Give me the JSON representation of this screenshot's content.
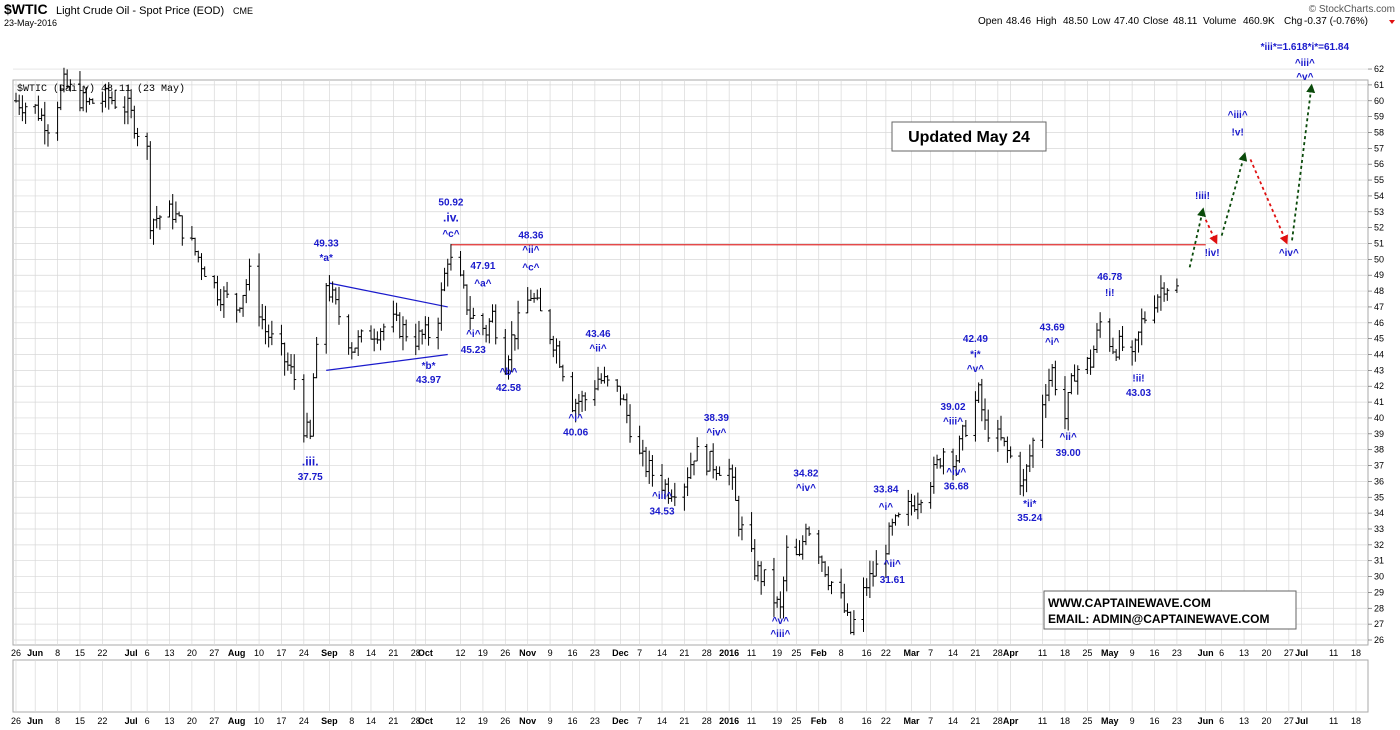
{
  "header": {
    "symbol": "$WTIC",
    "description": "Light Crude Oil - Spot Price (EOD)",
    "exchange": "CME",
    "date": "23-May-2016",
    "brand": "© StockCharts.com",
    "quote": {
      "open_label": "Open",
      "open": "48.46",
      "high_label": "High",
      "high": "48.50",
      "low_label": "Low",
      "low": "47.40",
      "close_label": "Close",
      "close": "48.11",
      "volume_label": "Volume",
      "volume": "460.9K",
      "chg_label": "Chg",
      "chg": "-0.37 (-0.76%)"
    }
  },
  "legend": "$WTIC (Daily) 48.11 (23 May)",
  "update_box": "Updated May 24",
  "contact": {
    "line1": "WWW.CAPTAINEWAVE.COM",
    "line2": "EMAIL: ADMIN@CAPTAINEWAVE.COM"
  },
  "colors": {
    "price_bars": "#000000",
    "annotation": "#1a1acc",
    "resistance": "#e03030",
    "up_arrow": "#0a4a0a",
    "down_arrow": "#e01010",
    "grid": "#d8d8d8"
  },
  "chart_data": {
    "type": "ohlc",
    "title": "$WTIC Light Crude Oil - Spot Price (EOD)",
    "ylim": [
      26,
      62
    ],
    "y_ticks": [
      26,
      27,
      28,
      29,
      30,
      31,
      32,
      33,
      34,
      35,
      36,
      37,
      38,
      39,
      40,
      41,
      42,
      43,
      44,
      45,
      46,
      47,
      48,
      49,
      50,
      51,
      52,
      53,
      54,
      55,
      56,
      57,
      58,
      59,
      60,
      61,
      62
    ],
    "x_range": [
      "2015-05-26",
      "2016-07-18"
    ],
    "x_ticks": [
      {
        "label": "26",
        "date": "2015-05-26"
      },
      {
        "label": "Jun",
        "date": "2015-06-01"
      },
      {
        "label": "8",
        "date": "2015-06-08"
      },
      {
        "label": "15",
        "date": "2015-06-15"
      },
      {
        "label": "22",
        "date": "2015-06-22"
      },
      {
        "label": "Jul",
        "date": "2015-07-01"
      },
      {
        "label": "6",
        "date": "2015-07-06"
      },
      {
        "label": "13",
        "date": "2015-07-13"
      },
      {
        "label": "20",
        "date": "2015-07-20"
      },
      {
        "label": "27",
        "date": "2015-07-27"
      },
      {
        "label": "Aug",
        "date": "2015-08-03"
      },
      {
        "label": "10",
        "date": "2015-08-10"
      },
      {
        "label": "17",
        "date": "2015-08-17"
      },
      {
        "label": "24",
        "date": "2015-08-24"
      },
      {
        "label": "Sep",
        "date": "2015-09-01"
      },
      {
        "label": "8",
        "date": "2015-09-08"
      },
      {
        "label": "14",
        "date": "2015-09-14"
      },
      {
        "label": "21",
        "date": "2015-09-21"
      },
      {
        "label": "28",
        "date": "2015-09-28"
      },
      {
        "label": "Oct",
        "date": "2015-10-01"
      },
      {
        "label": "12",
        "date": "2015-10-12"
      },
      {
        "label": "19",
        "date": "2015-10-19"
      },
      {
        "label": "26",
        "date": "2015-10-26"
      },
      {
        "label": "Nov",
        "date": "2015-11-02"
      },
      {
        "label": "9",
        "date": "2015-11-09"
      },
      {
        "label": "16",
        "date": "2015-11-16"
      },
      {
        "label": "23",
        "date": "2015-11-23"
      },
      {
        "label": "Dec",
        "date": "2015-12-01"
      },
      {
        "label": "7",
        "date": "2015-12-07"
      },
      {
        "label": "14",
        "date": "2015-12-14"
      },
      {
        "label": "21",
        "date": "2015-12-21"
      },
      {
        "label": "28",
        "date": "2015-12-28"
      },
      {
        "label": "2016",
        "date": "2016-01-04"
      },
      {
        "label": "11",
        "date": "2016-01-11"
      },
      {
        "label": "19",
        "date": "2016-01-19"
      },
      {
        "label": "25",
        "date": "2016-01-25"
      },
      {
        "label": "Feb",
        "date": "2016-02-01"
      },
      {
        "label": "8",
        "date": "2016-02-08"
      },
      {
        "label": "16",
        "date": "2016-02-16"
      },
      {
        "label": "22",
        "date": "2016-02-22"
      },
      {
        "label": "Mar",
        "date": "2016-03-01"
      },
      {
        "label": "7",
        "date": "2016-03-07"
      },
      {
        "label": "14",
        "date": "2016-03-14"
      },
      {
        "label": "21",
        "date": "2016-03-21"
      },
      {
        "label": "28",
        "date": "2016-03-28"
      },
      {
        "label": "Apr",
        "date": "2016-04-01"
      },
      {
        "label": "11",
        "date": "2016-04-11"
      },
      {
        "label": "18",
        "date": "2016-04-18"
      },
      {
        "label": "25",
        "date": "2016-04-25"
      },
      {
        "label": "May",
        "date": "2016-05-02"
      },
      {
        "label": "9",
        "date": "2016-05-09"
      },
      {
        "label": "16",
        "date": "2016-05-16"
      },
      {
        "label": "23",
        "date": "2016-05-23"
      },
      {
        "label": "Jun",
        "date": "2016-06-01"
      },
      {
        "label": "6",
        "date": "2016-06-06"
      },
      {
        "label": "13",
        "date": "2016-06-13"
      },
      {
        "label": "20",
        "date": "2016-06-20"
      },
      {
        "label": "27",
        "date": "2016-06-27"
      },
      {
        "label": "Jul",
        "date": "2016-07-01"
      },
      {
        "label": "11",
        "date": "2016-07-11"
      },
      {
        "label": "18",
        "date": "2016-07-18"
      }
    ],
    "price_path": [
      [
        "2015-05-26",
        60.0
      ],
      [
        "2015-06-01",
        59.5
      ],
      [
        "2015-06-05",
        58.5
      ],
      [
        "2015-06-10",
        61.0
      ],
      [
        "2015-06-17",
        59.8
      ],
      [
        "2015-06-24",
        60.2
      ],
      [
        "2015-06-30",
        59.5
      ],
      [
        "2015-07-06",
        56.8
      ],
      [
        "2015-07-07",
        52.5
      ],
      [
        "2015-07-14",
        53.0
      ],
      [
        "2015-07-21",
        50.5
      ],
      [
        "2015-07-28",
        48.0
      ],
      [
        "2015-08-03",
        47.0
      ],
      [
        "2015-08-07",
        49.0
      ],
      [
        "2015-08-12",
        45.5
      ],
      [
        "2015-08-17",
        44.0
      ],
      [
        "2015-08-21",
        42.5
      ],
      [
        "2015-08-24",
        39.5
      ],
      [
        "2015-08-26",
        38.6
      ],
      [
        "2015-08-27",
        42.5
      ],
      [
        "2015-08-31",
        48.5
      ],
      [
        "2015-09-03",
        47.0
      ],
      [
        "2015-09-08",
        44.5
      ],
      [
        "2015-09-15",
        45.5
      ],
      [
        "2015-09-21",
        46.0
      ],
      [
        "2015-09-28",
        45.0
      ],
      [
        "2015-10-02",
        45.3
      ],
      [
        "2015-10-05",
        46.5
      ],
      [
        "2015-10-08",
        50.2
      ],
      [
        "2015-10-12",
        48.5
      ],
      [
        "2015-10-15",
        46.5
      ],
      [
        "2015-10-20",
        45.5
      ],
      [
        "2015-10-22",
        46.5
      ],
      [
        "2015-10-26",
        43.5
      ],
      [
        "2015-10-28",
        45.0
      ],
      [
        "2015-11-03",
        47.8
      ],
      [
        "2015-11-06",
        46.5
      ],
      [
        "2015-11-11",
        44.5
      ],
      [
        "2015-11-16",
        41.0
      ],
      [
        "2015-11-20",
        41.2
      ],
      [
        "2015-11-24",
        42.5
      ],
      [
        "2015-12-01",
        41.5
      ],
      [
        "2015-12-07",
        37.5
      ],
      [
        "2015-12-11",
        36.5
      ],
      [
        "2015-12-16",
        35.5
      ],
      [
        "2015-12-21",
        36.0
      ],
      [
        "2015-12-24",
        37.8
      ],
      [
        "2015-12-29",
        37.2
      ],
      [
        "2016-01-04",
        36.7
      ],
      [
        "2016-01-07",
        33.5
      ],
      [
        "2016-01-12",
        30.5
      ],
      [
        "2016-01-15",
        29.8
      ],
      [
        "2016-01-20",
        27.8
      ],
      [
        "2016-01-22",
        31.5
      ],
      [
        "2016-01-26",
        31.0
      ],
      [
        "2016-01-28",
        33.5
      ],
      [
        "2016-02-01",
        31.7
      ],
      [
        "2016-02-04",
        30.0
      ],
      [
        "2016-02-08",
        28.5
      ],
      [
        "2016-02-11",
        26.5
      ],
      [
        "2016-02-16",
        29.5
      ],
      [
        "2016-02-19",
        30.5
      ],
      [
        "2016-02-24",
        33.0
      ],
      [
        "2016-03-01",
        34.5
      ],
      [
        "2016-03-08",
        36.5
      ],
      [
        "2016-03-11",
        38.0
      ],
      [
        "2016-03-15",
        37.5
      ],
      [
        "2016-03-18",
        39.5
      ],
      [
        "2016-03-22",
        41.5
      ],
      [
        "2016-03-24",
        39.5
      ],
      [
        "2016-03-29",
        38.5
      ],
      [
        "2016-04-01",
        37.5
      ],
      [
        "2016-04-05",
        35.8
      ],
      [
        "2016-04-08",
        38.5
      ],
      [
        "2016-04-12",
        42.0
      ],
      [
        "2016-04-14",
        43.0
      ],
      [
        "2016-04-18",
        40.0
      ],
      [
        "2016-04-21",
        43.0
      ],
      [
        "2016-04-26",
        43.5
      ],
      [
        "2016-04-29",
        46.0
      ],
      [
        "2016-05-03",
        44.5
      ],
      [
        "2016-05-06",
        44.5
      ],
      [
        "2016-05-09",
        43.5
      ],
      [
        "2016-05-12",
        46.0
      ],
      [
        "2016-05-16",
        47.5
      ],
      [
        "2016-05-19",
        48.5
      ],
      [
        "2016-05-23",
        48.11
      ]
    ],
    "resistance_line": {
      "value": 50.92,
      "from": "2015-10-09",
      "to": "2016-06-01"
    },
    "triangle": {
      "upper": [
        [
          "2015-09-01",
          48.5
        ],
        [
          "2015-10-08",
          47.0
        ]
      ],
      "lower": [
        [
          "2015-08-31",
          43.0
        ],
        [
          "2015-10-08",
          44.0
        ]
      ]
    },
    "annotations": [
      {
        "text": ".iii.",
        "date": "2015-08-26",
        "y": 37.0
      },
      {
        "text": "37.75",
        "date": "2015-08-26",
        "y": 36.1
      },
      {
        "text": "49.33",
        "date": "2015-08-31",
        "y": 50.8
      },
      {
        "text": "*a*",
        "date": "2015-08-31",
        "y": 49.9
      },
      {
        "text": "*b*",
        "date": "2015-10-02",
        "y": 43.1
      },
      {
        "text": "43.97",
        "date": "2015-10-02",
        "y": 42.2
      },
      {
        "text": "50.92",
        "date": "2015-10-09",
        "y": 53.4
      },
      {
        "text": ".iv.",
        "date": "2015-10-09",
        "y": 52.4
      },
      {
        "text": "^c^",
        "date": "2015-10-09",
        "y": 51.4
      },
      {
        "text": "47.91",
        "date": "2015-10-19",
        "y": 49.4
      },
      {
        "text": "^a^",
        "date": "2015-10-19",
        "y": 48.3
      },
      {
        "text": "^i^",
        "date": "2015-10-16",
        "y": 45.1
      },
      {
        "text": "45.23",
        "date": "2015-10-16",
        "y": 44.1
      },
      {
        "text": "^b^",
        "date": "2015-10-27",
        "y": 42.7
      },
      {
        "text": "42.58",
        "date": "2015-10-27",
        "y": 41.7
      },
      {
        "text": "48.36",
        "date": "2015-11-03",
        "y": 51.3
      },
      {
        "text": "^ii^",
        "date": "2015-11-03",
        "y": 50.4
      },
      {
        "text": "^c^",
        "date": "2015-11-03",
        "y": 49.3
      },
      {
        "text": "43.46",
        "date": "2015-11-24",
        "y": 45.1
      },
      {
        "text": "^ii^",
        "date": "2015-11-24",
        "y": 44.2
      },
      {
        "text": "^i^",
        "date": "2015-11-17",
        "y": 39.8
      },
      {
        "text": "40.06",
        "date": "2015-11-17",
        "y": 38.9
      },
      {
        "text": "^iii^",
        "date": "2015-12-14",
        "y": 34.9
      },
      {
        "text": "34.53",
        "date": "2015-12-14",
        "y": 33.9
      },
      {
        "text": "38.39",
        "date": "2015-12-31",
        "y": 39.8
      },
      {
        "text": "^iv^",
        "date": "2015-12-31",
        "y": 38.9
      },
      {
        "text": "^v^",
        "date": "2016-01-20",
        "y": 27.0
      },
      {
        "text": "^iii^",
        "date": "2016-01-20",
        "y": 26.2
      },
      {
        "text": "34.82",
        "date": "2016-01-28",
        "y": 36.3
      },
      {
        "text": "^iv^",
        "date": "2016-01-28",
        "y": 35.4
      },
      {
        "text": "33.84",
        "date": "2016-02-22",
        "y": 35.3
      },
      {
        "text": "^i^",
        "date": "2016-02-22",
        "y": 34.2
      },
      {
        "text": "^ii^",
        "date": "2016-02-24",
        "y": 30.6
      },
      {
        "text": "31.61",
        "date": "2016-02-24",
        "y": 29.6
      },
      {
        "text": "39.02",
        "date": "2016-03-14",
        "y": 40.5
      },
      {
        "text": "^iii^",
        "date": "2016-03-14",
        "y": 39.6
      },
      {
        "text": "^iv^",
        "date": "2016-03-15",
        "y": 36.4
      },
      {
        "text": "36.68",
        "date": "2016-03-15",
        "y": 35.5
      },
      {
        "text": "42.49",
        "date": "2016-03-21",
        "y": 44.8
      },
      {
        "text": "*i*",
        "date": "2016-03-21",
        "y": 43.8
      },
      {
        "text": "^v^",
        "date": "2016-03-21",
        "y": 42.9
      },
      {
        "text": "*ii*",
        "date": "2016-04-07",
        "y": 34.4
      },
      {
        "text": "35.24",
        "date": "2016-04-07",
        "y": 33.5
      },
      {
        "text": "43.69",
        "date": "2016-04-14",
        "y": 45.5
      },
      {
        "text": "^i^",
        "date": "2016-04-14",
        "y": 44.6
      },
      {
        "text": "^ii^",
        "date": "2016-04-19",
        "y": 38.6
      },
      {
        "text": "39.00",
        "date": "2016-04-19",
        "y": 37.6
      },
      {
        "text": "46.78",
        "date": "2016-05-02",
        "y": 48.7
      },
      {
        "text": "!i!",
        "date": "2016-05-02",
        "y": 47.7
      },
      {
        "text": "!ii!",
        "date": "2016-05-11",
        "y": 42.3
      },
      {
        "text": "43.03",
        "date": "2016-05-11",
        "y": 41.4
      },
      {
        "text": "!iii!",
        "date": "2016-05-31",
        "y": 53.8
      },
      {
        "text": "!iv!",
        "date": "2016-06-03",
        "y": 50.2
      },
      {
        "text": "^iii^",
        "date": "2016-06-11",
        "y": 58.9
      },
      {
        "text": "!v!",
        "date": "2016-06-11",
        "y": 57.8
      },
      {
        "text": "^iv^",
        "date": "2016-06-27",
        "y": 50.2
      },
      {
        "text": "*iii*=1.618*i*=61.84",
        "date": "2016-07-02",
        "y": 63.2
      },
      {
        "text": "^iii^",
        "date": "2016-07-02",
        "y": 62.2
      },
      {
        "text": "^v^",
        "date": "2016-07-02",
        "y": 61.3
      }
    ],
    "projection_arrows": [
      {
        "kind": "up",
        "from": [
          "2016-05-27",
          49.5
        ],
        "to": [
          "2016-05-31",
          53.0
        ]
      },
      {
        "kind": "down",
        "from": [
          "2016-06-01",
          52.5
        ],
        "to": [
          "2016-06-04",
          51.2
        ]
      },
      {
        "kind": "up",
        "from": [
          "2016-06-06",
          51.5
        ],
        "to": [
          "2016-06-13",
          56.5
        ]
      },
      {
        "kind": "down",
        "from": [
          "2016-06-15",
          56.3
        ],
        "to": [
          "2016-06-26",
          51.2
        ]
      },
      {
        "kind": "up",
        "from": [
          "2016-06-28",
          51.2
        ],
        "to": [
          "2016-07-04",
          60.8
        ]
      }
    ]
  }
}
